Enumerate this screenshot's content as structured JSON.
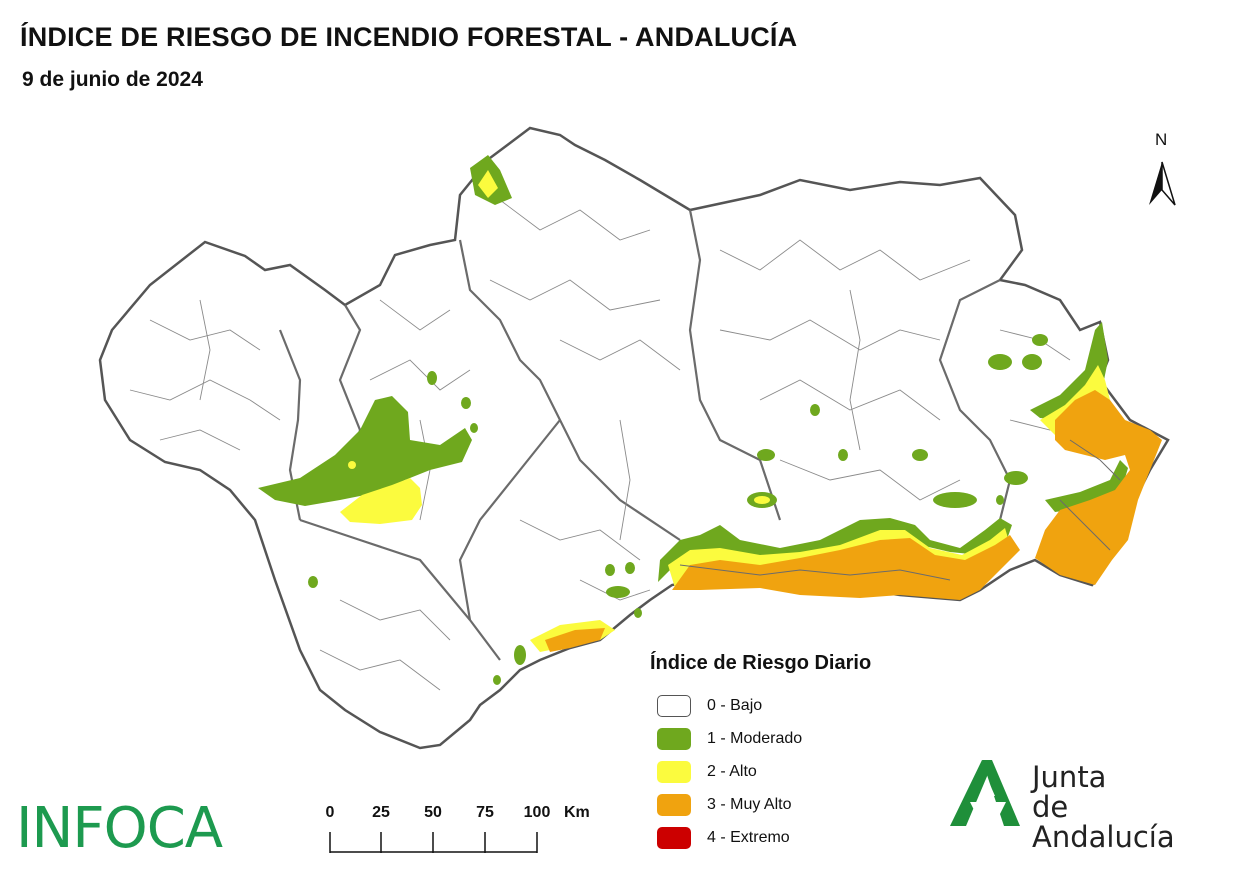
{
  "header": {
    "title": "ÍNDICE DE RIESGO DE INCENDIO FORESTAL - ANDALUCÍA",
    "date": "9 de junio de 2024"
  },
  "north_arrow": {
    "label": "N",
    "icon": "north-arrow-icon"
  },
  "legend": {
    "title": "Índice de Riesgo Diario",
    "items": [
      {
        "label": "0 - Bajo",
        "color": "#ffffff"
      },
      {
        "label": "1 - Moderado",
        "color": "#6fa81e"
      },
      {
        "label": "2 - Alto",
        "color": "#fbfb3e"
      },
      {
        "label": "3 - Muy Alto",
        "color": "#f0a30f"
      },
      {
        "label": "4 - Extremo",
        "color": "#cc0000"
      }
    ]
  },
  "scale": {
    "ticks": [
      "0",
      "25",
      "50",
      "75",
      "100"
    ],
    "unit": "Km"
  },
  "logos": {
    "infoca": "INFOCA",
    "junta_line1": "Junta",
    "junta_line2": "de Andalucía"
  },
  "colors": {
    "boundary": "#6b6b6b",
    "moderado": "#6fa81e",
    "alto": "#fbfb3e",
    "muy_alto": "#f0a30f",
    "junta_green": "#1f8f3a"
  }
}
